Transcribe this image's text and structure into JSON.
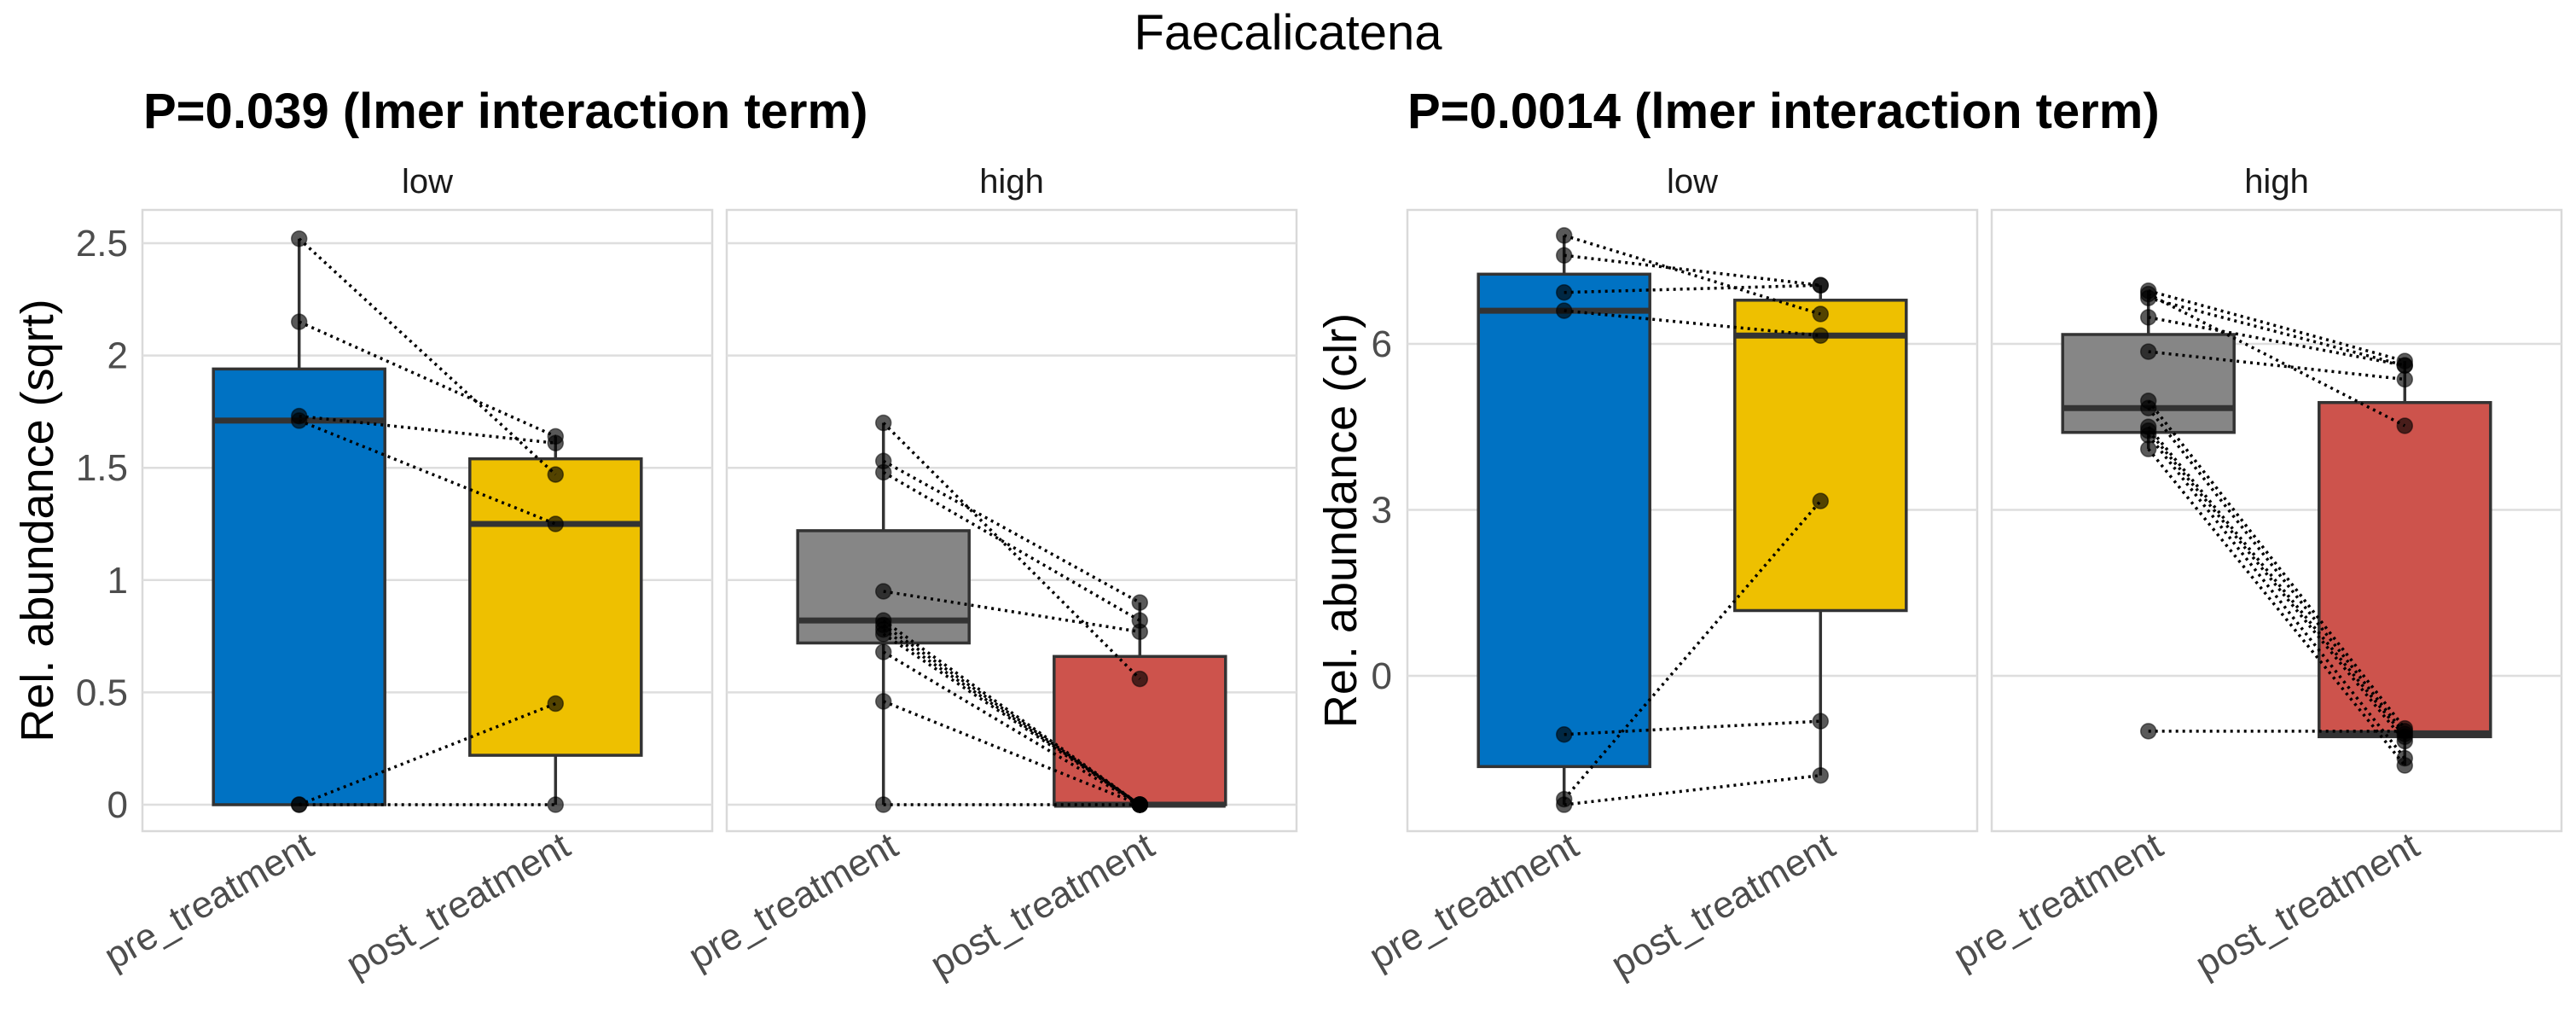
{
  "title": "Faecalicatena",
  "colors": {
    "low_pre": "#0072C3",
    "low_post": "#EEC000",
    "high_pre": "#868686",
    "high_post": "#CD534C"
  },
  "chart_data": [
    {
      "type": "box",
      "title": "P=0.039 (lmer interaction term)",
      "ylabel": "Rel. abundance (sqrt)",
      "ylim": [
        -0.12,
        2.65
      ],
      "yticks": [
        0,
        0.5,
        1,
        1.5,
        2,
        2.5
      ],
      "ytick_labels": [
        "0",
        "0.5",
        "1",
        "1.5",
        "2",
        "2.5"
      ],
      "grid": true,
      "categories": [
        "pre_treatment",
        "post_treatment"
      ],
      "facets": [
        {
          "strip": "low",
          "boxes": [
            {
              "group": "pre_treatment",
              "color_key": "low_pre",
              "whisker_low": 0,
              "q1": 0,
              "median": 1.71,
              "q3": 1.94,
              "whisker_high": 2.52
            },
            {
              "group": "post_treatment",
              "color_key": "low_post",
              "whisker_low": 0,
              "q1": 0.22,
              "median": 1.25,
              "q3": 1.54,
              "whisker_high": 1.64
            }
          ],
          "pairs": [
            [
              2.52,
              1.47
            ],
            [
              2.15,
              1.64
            ],
            [
              1.73,
              1.61
            ],
            [
              1.71,
              1.25
            ],
            [
              0,
              0.45
            ],
            [
              0,
              0
            ]
          ]
        },
        {
          "strip": "high",
          "boxes": [
            {
              "group": "pre_treatment",
              "color_key": "high_pre",
              "whisker_low": 0,
              "q1": 0.72,
              "median": 0.82,
              "q3": 1.22,
              "whisker_high": 1.7
            },
            {
              "group": "post_treatment",
              "color_key": "high_post",
              "whisker_low": 0,
              "q1": 0,
              "median": 0,
              "q3": 0.66,
              "whisker_high": 0.9
            }
          ],
          "pairs": [
            [
              1.7,
              0.56
            ],
            [
              1.53,
              0.9
            ],
            [
              1.48,
              0.82
            ],
            [
              0.95,
              0.77
            ],
            [
              0.82,
              0
            ],
            [
              0.8,
              0
            ],
            [
              0.78,
              0
            ],
            [
              0.76,
              0
            ],
            [
              0.68,
              0
            ],
            [
              0.46,
              0
            ],
            [
              0,
              0
            ]
          ]
        }
      ]
    },
    {
      "type": "box",
      "title": "P=0.0014 (lmer interaction term)",
      "ylabel": "Rel. abundance (clr)",
      "ylim": [
        -2.8,
        8.5
      ],
      "yticks": [
        0,
        3,
        6
      ],
      "ytick_labels": [
        "0",
        "3",
        "6"
      ],
      "grid": true,
      "categories": [
        "pre_treatment",
        "post_treatment"
      ],
      "facets": [
        {
          "strip": "low",
          "boxes": [
            {
              "group": "pre_treatment",
              "color_key": "low_pre",
              "whisker_low": -2.33,
              "q1": -1.64,
              "median": 6.6,
              "q3": 7.26,
              "whisker_high": 7.96
            },
            {
              "group": "post_treatment",
              "color_key": "low_post",
              "whisker_low": -1.8,
              "q1": 1.18,
              "median": 6.15,
              "q3": 6.79,
              "whisker_high": 7.06
            }
          ],
          "pairs": [
            [
              7.96,
              6.54
            ],
            [
              7.6,
              7.06
            ],
            [
              6.93,
              7.06
            ],
            [
              6.6,
              6.15
            ],
            [
              -1.06,
              -0.82
            ],
            [
              -2.23,
              3.16
            ],
            [
              -2.33,
              -1.8
            ]
          ]
        },
        {
          "strip": "high",
          "boxes": [
            {
              "group": "pre_treatment",
              "color_key": "high_pre",
              "whisker_low": 4.1,
              "q1": 4.4,
              "median": 4.84,
              "q3": 6.17,
              "whisker_high": 6.96
            },
            {
              "group": "post_treatment",
              "color_key": "high_post",
              "whisker_low": -1.62,
              "q1": -1.1,
              "median": -1.04,
              "q3": 4.94,
              "whisker_high": 5.69
            }
          ],
          "pairs": [
            [
              6.96,
              5.69
            ],
            [
              6.9,
              4.52
            ],
            [
              6.83,
              5.61
            ],
            [
              6.48,
              5.61
            ],
            [
              5.86,
              5.36
            ],
            [
              4.97,
              -0.95
            ],
            [
              4.84,
              -1.05
            ],
            [
              4.5,
              -1.1
            ],
            [
              4.43,
              -1.18
            ],
            [
              4.35,
              -1.49
            ],
            [
              4.1,
              -1.62
            ],
            [
              -1.0,
              -1.0
            ]
          ]
        }
      ]
    }
  ]
}
